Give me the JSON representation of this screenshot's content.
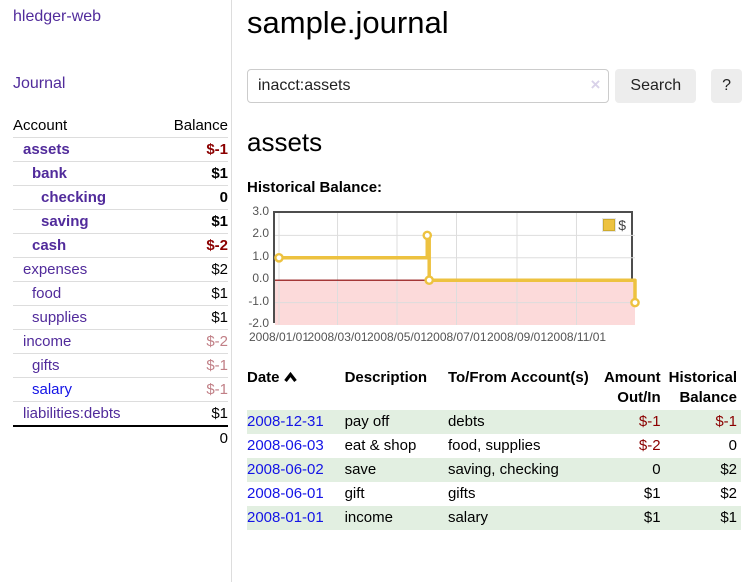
{
  "app": {
    "title": "hledger-web"
  },
  "colors": {
    "link_purple": "#512b9b",
    "link_blue": "#1414e6",
    "negative_red": "#8b0000",
    "negative_muted": "#c17f86",
    "row_green": "#e2efe1",
    "chart_line": "#edc240",
    "chart_negative_fill": "#fcdada",
    "chart_zero_line": "#8b0000",
    "button_bg": "#ededed"
  },
  "sidebar": {
    "journal_link": "Journal",
    "accounts": {
      "header_account": "Account",
      "header_balance": "Balance",
      "rows": [
        {
          "name": "assets",
          "balance": "$-1",
          "depth": 1,
          "bold": true,
          "neg": "strong",
          "link": "purple"
        },
        {
          "name": "bank",
          "balance": "$1",
          "depth": 2,
          "bold": true,
          "neg": "none",
          "link": "purple"
        },
        {
          "name": "checking",
          "balance": "0",
          "depth": 3,
          "bold": true,
          "neg": "none",
          "link": "purple"
        },
        {
          "name": "saving",
          "balance": "$1",
          "depth": 3,
          "bold": true,
          "neg": "none",
          "link": "purple"
        },
        {
          "name": "cash",
          "balance": "$-2",
          "depth": 2,
          "bold": true,
          "neg": "strong",
          "link": "purple"
        },
        {
          "name": "expenses",
          "balance": "$2",
          "depth": 1,
          "bold": false,
          "neg": "none",
          "link": "purple"
        },
        {
          "name": "food",
          "balance": "$1",
          "depth": 2,
          "bold": false,
          "neg": "none",
          "link": "purple"
        },
        {
          "name": "supplies",
          "balance": "$1",
          "depth": 2,
          "bold": false,
          "neg": "none",
          "link": "purple"
        },
        {
          "name": "income",
          "balance": "$-2",
          "depth": 1,
          "bold": false,
          "neg": "muted",
          "link": "purple"
        },
        {
          "name": "gifts",
          "balance": "$-1",
          "depth": 2,
          "bold": false,
          "neg": "muted",
          "link": "purple"
        },
        {
          "name": "salary",
          "balance": "$-1",
          "depth": 2,
          "bold": false,
          "neg": "muted",
          "link": "blue"
        },
        {
          "name": "liabilities:debts",
          "balance": "$1",
          "depth": 1,
          "bold": false,
          "neg": "none",
          "link": "purple"
        }
      ],
      "total": "0"
    }
  },
  "header": {
    "title": "sample.journal"
  },
  "search": {
    "value": "inacct:assets",
    "clear_icon": "×",
    "button_label": "Search",
    "help_label": "?"
  },
  "account_page": {
    "title": "assets",
    "chart_label": "Historical Balance:"
  },
  "chart_data": {
    "type": "line",
    "title": "Historical Balance",
    "step": true,
    "x_start": "2008-01-01",
    "x_end": "2008-12-31",
    "ylim": [
      -2,
      3
    ],
    "yticks": [
      "3.0",
      "2.0",
      "1.0",
      "0.0",
      "-1.0",
      "-2.0"
    ],
    "xticks": [
      "2008/01/01",
      "2008/03/01",
      "2008/05/01",
      "2008/07/01",
      "2008/09/01",
      "2008/11/01"
    ],
    "grid": true,
    "legend_position": "top-right",
    "series": [
      {
        "name": "$",
        "points": [
          [
            "2008-01-01",
            1
          ],
          [
            "2008-06-01",
            2
          ],
          [
            "2008-06-03",
            0
          ],
          [
            "2008-12-31",
            -1
          ]
        ]
      }
    ]
  },
  "register": {
    "headers": {
      "date": "Date",
      "description": "Description",
      "accounts": "To/From Account(s)",
      "amount": "Amount Out/In",
      "balance": "Historical Balance"
    },
    "sort": {
      "column": "date",
      "direction": "ascending"
    },
    "rows": [
      {
        "date": "2008-12-31",
        "description": "pay off",
        "accounts": "debts",
        "amount": "$-1",
        "balance": "$-1",
        "amount_neg": true,
        "balance_neg": true
      },
      {
        "date": "2008-06-03",
        "description": "eat & shop",
        "accounts": "food, supplies",
        "amount": "$-2",
        "balance": "0",
        "amount_neg": true,
        "balance_neg": false
      },
      {
        "date": "2008-06-02",
        "description": "save",
        "accounts": "saving, checking",
        "amount": "0",
        "balance": "$2",
        "amount_neg": false,
        "balance_neg": false
      },
      {
        "date": "2008-06-01",
        "description": "gift",
        "accounts": "gifts",
        "amount": "$1",
        "balance": "$2",
        "amount_neg": false,
        "balance_neg": false
      },
      {
        "date": "2008-01-01",
        "description": "income",
        "accounts": "salary",
        "amount": "$1",
        "balance": "$1",
        "amount_neg": false,
        "balance_neg": false
      }
    ]
  }
}
